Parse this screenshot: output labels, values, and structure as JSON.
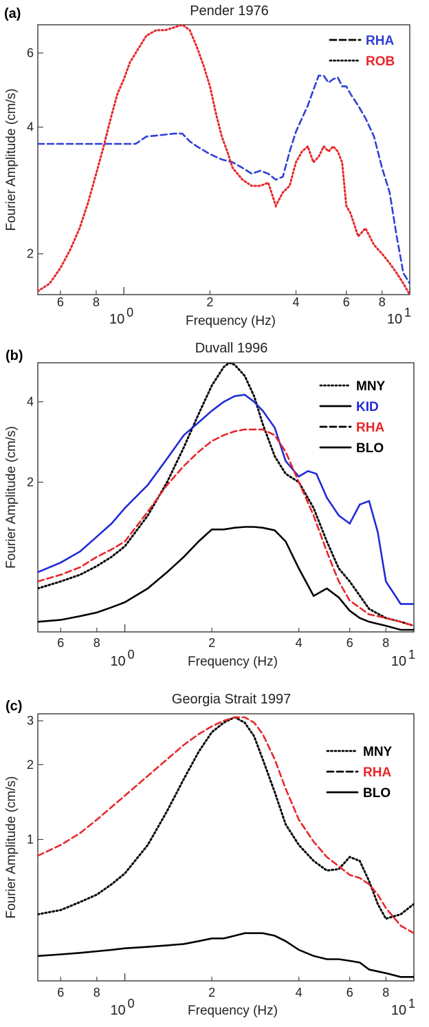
{
  "chart_data": [
    {
      "panel": "(a)",
      "title": "Pender 1976",
      "type": "line",
      "xlabel": "Frequency (Hz)",
      "ylabel": "Fourier Amplitude (cm/s)",
      "x_scale": "log",
      "y_scale": "log",
      "xlim": [
        0.5,
        10
      ],
      "ylim": [
        1.6,
        7
      ],
      "x_ticks_minor": [
        "6",
        "8",
        "2",
        "4",
        "6",
        "8"
      ],
      "x_ticks_major": [
        "10",
        "0",
        "10",
        "1"
      ],
      "y_ticks": [
        "2",
        "4",
        "6"
      ],
      "legend_position": "top-right",
      "series": [
        {
          "name": "RHA",
          "style": "dashed",
          "color": "#2f3fd6",
          "x": [
            0.5,
            0.6,
            0.7,
            0.8,
            0.9,
            1.0,
            1.1,
            1.2,
            1.3,
            1.4,
            1.5,
            1.6,
            1.7,
            1.8,
            2.0,
            2.2,
            2.4,
            2.6,
            2.8,
            3.0,
            3.2,
            3.4,
            3.6,
            3.8,
            4.0,
            4.2,
            4.4,
            4.6,
            4.8,
            5.0,
            5.2,
            5.4,
            5.6,
            5.8,
            6.0,
            6.2,
            6.6,
            7.0,
            7.5,
            8.0,
            8.5,
            9.0,
            9.5,
            10.0
          ],
          "y": [
            3.65,
            3.65,
            3.65,
            3.65,
            3.65,
            3.65,
            3.65,
            3.8,
            3.82,
            3.84,
            3.86,
            3.86,
            3.7,
            3.6,
            3.45,
            3.35,
            3.3,
            3.2,
            3.1,
            3.15,
            3.1,
            3.0,
            3.05,
            3.5,
            3.9,
            4.2,
            4.5,
            4.9,
            5.3,
            5.3,
            5.1,
            5.2,
            5.25,
            5.0,
            5.0,
            4.8,
            4.5,
            4.2,
            3.8,
            3.2,
            2.8,
            2.2,
            1.8,
            1.7
          ]
        },
        {
          "name": "ROB",
          "style": "dotted",
          "color": "#e8262a",
          "x": [
            0.5,
            0.55,
            0.6,
            0.65,
            0.7,
            0.75,
            0.8,
            0.85,
            0.9,
            0.95,
            1.0,
            1.05,
            1.1,
            1.15,
            1.2,
            1.3,
            1.4,
            1.5,
            1.6,
            1.7,
            1.8,
            1.9,
            2.0,
            2.1,
            2.2,
            2.3,
            2.4,
            2.6,
            2.8,
            3.0,
            3.2,
            3.4,
            3.6,
            3.8,
            4.0,
            4.2,
            4.4,
            4.6,
            4.8,
            5.0,
            5.2,
            5.4,
            5.6,
            5.8,
            6.0,
            6.2,
            6.6,
            7.0,
            7.5,
            8.0,
            8.5,
            9.0,
            9.5,
            10.0
          ],
          "y": [
            1.63,
            1.7,
            1.85,
            2.05,
            2.3,
            2.65,
            3.1,
            3.6,
            4.2,
            4.8,
            5.2,
            5.7,
            6.0,
            6.3,
            6.6,
            6.8,
            6.8,
            6.9,
            7.0,
            6.8,
            6.2,
            5.6,
            5.0,
            4.3,
            3.8,
            3.5,
            3.2,
            3.0,
            2.9,
            2.9,
            2.95,
            2.6,
            2.8,
            2.9,
            3.3,
            3.5,
            3.6,
            3.3,
            3.4,
            3.6,
            3.5,
            3.6,
            3.5,
            3.3,
            2.6,
            2.5,
            2.2,
            2.3,
            2.1,
            2.0,
            1.9,
            1.8,
            1.7,
            1.6
          ]
        }
      ]
    },
    {
      "panel": "(b)",
      "title": "Duvall 1996",
      "type": "line",
      "xlabel": "Frequency (Hz)",
      "ylabel": "Fourier Amplitude (cm/s)",
      "x_scale": "log",
      "y_scale": "log",
      "xlim": [
        0.5,
        10
      ],
      "ylim": [
        0.55,
        5.6
      ],
      "x_ticks_minor": [
        "6",
        "8",
        "2",
        "4",
        "6",
        "8"
      ],
      "x_ticks_major": [
        "10",
        "0",
        "10",
        "1"
      ],
      "y_ticks": [
        "2",
        "4"
      ],
      "legend_position": "top-right",
      "series": [
        {
          "name": "MNY",
          "style": "dotted",
          "color": "#000000",
          "x": [
            0.5,
            0.6,
            0.7,
            0.8,
            0.9,
            1.0,
            1.2,
            1.4,
            1.6,
            1.8,
            2.0,
            2.2,
            2.3,
            2.4,
            2.6,
            2.8,
            3.0,
            3.3,
            3.6,
            4.0,
            4.5,
            5.0,
            5.5,
            6.0,
            7.0,
            8.0,
            9.0,
            10.0
          ],
          "y": [
            0.8,
            0.85,
            0.9,
            0.97,
            1.05,
            1.15,
            1.5,
            2.0,
            2.7,
            3.6,
            4.6,
            5.4,
            5.6,
            5.5,
            5.0,
            4.2,
            3.3,
            2.5,
            2.15,
            2.0,
            1.6,
            1.2,
            0.95,
            0.85,
            0.67,
            0.62,
            0.6,
            0.58
          ]
        },
        {
          "name": "KID",
          "style": "solid",
          "color": "#1f2ad6",
          "x": [
            0.5,
            0.6,
            0.7,
            0.8,
            0.9,
            1.0,
            1.2,
            1.4,
            1.6,
            1.8,
            2.0,
            2.2,
            2.4,
            2.6,
            2.8,
            3.0,
            3.3,
            3.6,
            4.0,
            4.3,
            4.6,
            5.0,
            5.5,
            6.0,
            6.5,
            7.0,
            7.5,
            8.0,
            9.0,
            10.0
          ],
          "y": [
            0.92,
            1.0,
            1.1,
            1.25,
            1.4,
            1.6,
            1.95,
            2.45,
            3.0,
            3.35,
            3.7,
            4.0,
            4.2,
            4.25,
            4.0,
            3.7,
            3.2,
            2.4,
            2.1,
            2.2,
            2.15,
            1.75,
            1.5,
            1.4,
            1.65,
            1.7,
            1.3,
            0.85,
            0.7,
            0.7
          ]
        },
        {
          "name": "RHA",
          "style": "dashed",
          "color": "#e8262a",
          "x": [
            0.5,
            0.6,
            0.7,
            0.8,
            0.9,
            1.0,
            1.2,
            1.4,
            1.6,
            1.8,
            2.0,
            2.2,
            2.4,
            2.6,
            2.8,
            3.0,
            3.3,
            3.6,
            4.0,
            4.5,
            5.0,
            5.5,
            6.0,
            7.0,
            8.0,
            9.0,
            10.0
          ],
          "y": [
            0.85,
            0.9,
            0.96,
            1.05,
            1.12,
            1.2,
            1.55,
            1.95,
            2.3,
            2.6,
            2.85,
            3.0,
            3.1,
            3.15,
            3.15,
            3.15,
            3.0,
            2.6,
            2.0,
            1.5,
            1.1,
            0.85,
            0.72,
            0.64,
            0.62,
            0.6,
            0.58
          ]
        },
        {
          "name": "BLO",
          "style": "solid",
          "color": "#000000",
          "x": [
            0.5,
            0.6,
            0.7,
            0.8,
            0.9,
            1.0,
            1.2,
            1.4,
            1.6,
            1.8,
            2.0,
            2.2,
            2.4,
            2.6,
            2.8,
            3.0,
            3.3,
            3.6,
            4.0,
            4.5,
            5.0,
            5.5,
            6.0,
            6.5,
            7.0,
            8.0,
            9.0,
            10.0
          ],
          "y": [
            0.6,
            0.61,
            0.63,
            0.65,
            0.68,
            0.71,
            0.8,
            0.92,
            1.05,
            1.2,
            1.33,
            1.33,
            1.35,
            1.36,
            1.36,
            1.35,
            1.32,
            1.2,
            0.95,
            0.75,
            0.8,
            0.74,
            0.66,
            0.62,
            0.6,
            0.58,
            0.56,
            0.56
          ]
        }
      ]
    },
    {
      "panel": "(c)",
      "title": "Georgia Strait 1997",
      "type": "line",
      "xlabel": "Frequency (Hz)",
      "ylabel": "Fourier Amplitude (cm/s)",
      "x_scale": "log",
      "y_scale": "log",
      "xlim": [
        0.5,
        10
      ],
      "ylim": [
        0.27,
        3.2
      ],
      "x_ticks_minor": [
        "6",
        "8",
        "2",
        "4",
        "6",
        "8"
      ],
      "x_ticks_major": [
        "10",
        "0",
        "10",
        "1"
      ],
      "y_ticks": [
        "1",
        "2",
        "3"
      ],
      "legend_position": "top-right",
      "series": [
        {
          "name": "MNY",
          "style": "dotted",
          "color": "#000000",
          "x": [
            0.5,
            0.6,
            0.7,
            0.8,
            0.9,
            1.0,
            1.2,
            1.4,
            1.6,
            1.8,
            2.0,
            2.2,
            2.4,
            2.6,
            2.8,
            3.0,
            3.3,
            3.6,
            4.0,
            4.5,
            5.0,
            5.5,
            6.0,
            6.5,
            7.0,
            7.5,
            8.0,
            9.0,
            10.0
          ],
          "y": [
            0.5,
            0.52,
            0.56,
            0.6,
            0.66,
            0.73,
            0.95,
            1.3,
            1.75,
            2.25,
            2.7,
            2.95,
            3.1,
            2.95,
            2.6,
            2.1,
            1.55,
            1.15,
            0.95,
            0.82,
            0.75,
            0.76,
            0.85,
            0.82,
            0.68,
            0.55,
            0.48,
            0.5,
            0.55
          ]
        },
        {
          "name": "RHA",
          "style": "dashed",
          "color": "#e8262a",
          "x": [
            0.5,
            0.6,
            0.7,
            0.8,
            0.9,
            1.0,
            1.2,
            1.4,
            1.6,
            1.8,
            2.0,
            2.2,
            2.4,
            2.6,
            2.8,
            3.0,
            3.3,
            3.6,
            4.0,
            4.5,
            5.0,
            5.5,
            6.0,
            6.5,
            7.0,
            7.5,
            8.0,
            9.0,
            10.0
          ],
          "y": [
            0.86,
            0.95,
            1.06,
            1.2,
            1.35,
            1.5,
            1.8,
            2.1,
            2.4,
            2.65,
            2.85,
            3.0,
            3.1,
            3.1,
            2.95,
            2.65,
            2.1,
            1.6,
            1.2,
            0.98,
            0.85,
            0.78,
            0.72,
            0.7,
            0.66,
            0.6,
            0.53,
            0.45,
            0.42
          ]
        },
        {
          "name": "BLO",
          "style": "solid",
          "color": "#000000",
          "x": [
            0.5,
            0.6,
            0.7,
            0.8,
            0.9,
            1.0,
            1.2,
            1.4,
            1.6,
            1.8,
            2.0,
            2.2,
            2.4,
            2.6,
            2.8,
            3.0,
            3.3,
            3.6,
            4.0,
            4.5,
            5.0,
            5.5,
            6.0,
            6.5,
            7.0,
            8.0,
            9.0,
            10.0
          ],
          "y": [
            0.34,
            0.345,
            0.35,
            0.355,
            0.36,
            0.365,
            0.37,
            0.375,
            0.38,
            0.39,
            0.4,
            0.4,
            0.41,
            0.42,
            0.42,
            0.42,
            0.41,
            0.39,
            0.36,
            0.34,
            0.33,
            0.33,
            0.325,
            0.32,
            0.3,
            0.29,
            0.28,
            0.28
          ]
        }
      ]
    }
  ]
}
